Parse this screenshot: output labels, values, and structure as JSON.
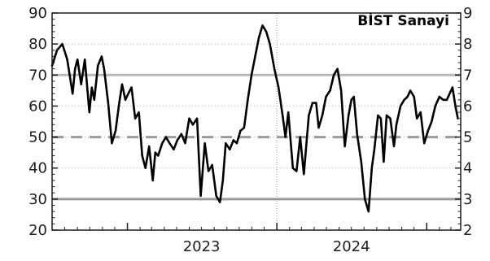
{
  "chart_data": {
    "type": "line",
    "title": "BİST Sanayi",
    "xlabel": "",
    "ylabel": "",
    "ylim": [
      20,
      90
    ],
    "yticks": [
      20,
      30,
      40,
      50,
      60,
      70,
      80,
      90
    ],
    "y_tick_labels_left": [
      "20",
      "30",
      "40",
      "50",
      "60",
      "70",
      "80",
      "90"
    ],
    "y_tick_labels_right": [
      "2",
      "3",
      "4",
      "5",
      "6",
      "7",
      "8",
      "9"
    ],
    "x_tick_labels": [
      {
        "label": "2023",
        "date": "2023-07-01"
      },
      {
        "label": "2024",
        "date": "2024-07-01"
      }
    ],
    "x_range": [
      "2022-07-01",
      "2025-03-25"
    ],
    "year_boundaries": [
      "2024-01-01"
    ],
    "grid": "dotted",
    "reference_lines": [
      {
        "value": 70,
        "style": "solid",
        "color": "#b8b8b8"
      },
      {
        "value": 50,
        "style": "dashed",
        "color": "#9a9a9a"
      },
      {
        "value": 30,
        "style": "solid",
        "color": "#9a9a9a"
      }
    ],
    "series": [
      {
        "color": "#000000",
        "x": [
          "2022-07-01",
          "2022-07-13",
          "2022-07-26",
          "2022-08-07",
          "2022-08-20",
          "2022-08-26",
          "2022-09-01",
          "2022-09-10",
          "2022-09-19",
          "2022-09-30",
          "2022-10-06",
          "2022-10-12",
          "2022-10-21",
          "2022-10-30",
          "2022-11-05",
          "2022-11-15",
          "2022-11-24",
          "2022-12-03",
          "2022-12-12",
          "2022-12-19",
          "2022-12-27",
          "2023-01-03",
          "2023-01-11",
          "2023-01-20",
          "2023-01-29",
          "2023-02-06",
          "2023-02-14",
          "2023-02-23",
          "2023-03-04",
          "2023-03-10",
          "2023-03-17",
          "2023-03-27",
          "2023-04-05",
          "2023-04-14",
          "2023-04-24",
          "2023-05-03",
          "2023-05-13",
          "2023-05-22",
          "2023-06-01",
          "2023-06-10",
          "2023-06-20",
          "2023-06-29",
          "2023-07-09",
          "2023-07-18",
          "2023-07-27",
          "2023-08-06",
          "2023-08-15",
          "2023-08-22",
          "2023-08-29",
          "2023-09-08",
          "2023-09-17",
          "2023-09-25",
          "2023-10-04",
          "2023-10-13",
          "2023-10-22",
          "2023-10-31",
          "2023-11-09",
          "2023-11-18",
          "2023-11-27",
          "2023-12-06",
          "2023-12-15",
          "2023-12-26",
          "2024-01-05",
          "2024-01-15",
          "2024-01-22",
          "2024-01-29",
          "2024-02-09",
          "2024-02-18",
          "2024-02-27",
          "2024-03-07",
          "2024-03-19",
          "2024-03-28",
          "2024-04-06",
          "2024-04-12",
          "2024-04-21",
          "2024-04-30",
          "2024-05-10",
          "2024-05-19",
          "2024-05-28",
          "2024-06-06",
          "2024-06-15",
          "2024-06-24",
          "2024-07-01",
          "2024-07-07",
          "2024-07-15",
          "2024-07-25",
          "2024-08-03",
          "2024-08-12",
          "2024-08-20",
          "2024-08-26",
          "2024-09-04",
          "2024-09-11",
          "2024-09-18",
          "2024-09-25",
          "2024-10-04",
          "2024-10-13",
          "2024-10-19",
          "2024-10-29",
          "2024-11-07",
          "2024-11-15",
          "2024-11-22",
          "2024-12-01",
          "2024-12-08",
          "2024-12-17",
          "2024-12-26",
          "2025-01-04",
          "2025-01-13",
          "2025-01-22",
          "2025-02-01",
          "2025-02-10",
          "2025-02-19",
          "2025-02-26",
          "2025-03-05",
          "2025-03-12",
          "2025-03-18"
        ],
        "values": [
          73,
          78,
          80,
          75,
          64,
          72,
          75,
          67,
          75,
          58,
          66,
          62,
          73,
          76,
          72,
          61,
          48,
          52,
          61,
          67,
          62,
          64,
          66,
          56,
          58,
          44,
          40,
          47,
          36,
          45,
          44,
          48,
          50,
          48,
          46,
          49,
          51,
          48,
          56,
          54,
          56,
          31,
          48,
          39,
          41,
          31,
          29,
          36,
          48,
          46,
          49,
          48,
          52,
          53,
          62,
          70,
          76,
          82,
          86,
          84,
          80,
          72,
          66,
          57,
          50,
          58,
          40,
          39,
          50,
          38,
          57,
          61,
          61,
          53,
          57,
          63,
          65,
          70,
          72,
          65,
          47,
          57,
          62,
          63,
          51,
          42,
          30,
          26,
          40,
          46,
          57,
          56,
          42,
          57,
          56,
          47,
          54,
          60,
          62,
          63,
          65,
          63,
          56,
          58,
          48,
          52,
          55,
          60,
          63,
          62,
          62,
          64,
          66,
          60,
          56
        ]
      }
    ]
  }
}
